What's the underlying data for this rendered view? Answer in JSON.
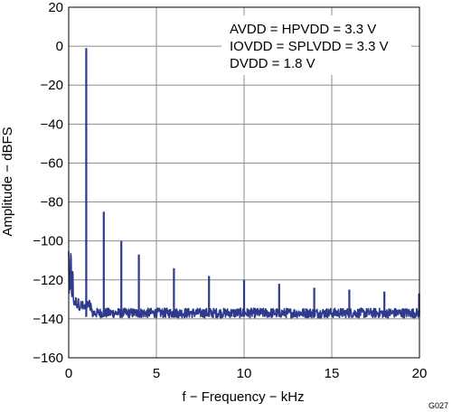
{
  "chart_data": {
    "type": "line",
    "xlabel": "f − Frequency − kHz",
    "ylabel": "Amplitude − dBFS",
    "xlim": [
      0,
      20
    ],
    "ylim": [
      -160,
      20
    ],
    "x_ticks": [
      "0",
      "5",
      "10",
      "15",
      "20"
    ],
    "y_ticks": [
      "20",
      "0",
      "−20",
      "−40",
      "−60",
      "−80",
      "−100",
      "−120",
      "−140",
      "−160"
    ],
    "grid": true,
    "line_color": "#2e3a8c",
    "noise_floor_db": -137,
    "low_freq_region": {
      "x_end": 0.25,
      "peak_db": -96
    },
    "peaks": [
      {
        "x": 1.0,
        "y": -1
      },
      {
        "x": 2.0,
        "y": -85
      },
      {
        "x": 3.0,
        "y": -100
      },
      {
        "x": 4.0,
        "y": -107
      },
      {
        "x": 6.0,
        "y": -114
      },
      {
        "x": 8.0,
        "y": -118
      },
      {
        "x": 10.0,
        "y": -120
      },
      {
        "x": 12.0,
        "y": -122
      },
      {
        "x": 14.0,
        "y": -124
      },
      {
        "x": 16.0,
        "y": -125
      },
      {
        "x": 18.0,
        "y": -126
      },
      {
        "x": 20.0,
        "y": -127
      }
    ],
    "annotations": [
      "AVDD = HPVDD = 3.3 V",
      "IOVDD = SPLVDD = 3.3 V",
      "DVDD = 1.8 V"
    ],
    "figure_id": "G027"
  }
}
